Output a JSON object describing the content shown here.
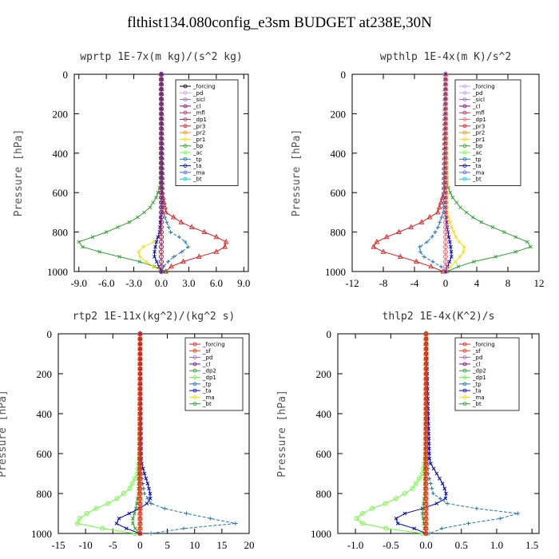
{
  "suptitle": "flthist134.080config_e3sm  BUDGET at238E,30N",
  "chart_data": [
    {
      "type": "line",
      "title": "wprtp  1E-7x(m kg)/(s^2 kg)",
      "ylabel": "Pressure [hPa]",
      "xlim": [
        -9.5,
        9.5
      ],
      "xticks": [
        -9.0,
        -6.0,
        -3.0,
        0.0,
        3.0,
        6.0,
        9.0
      ],
      "xtick_labels": [
        "-9.0",
        "-6.0",
        "-3.0",
        "0.0",
        "3.0",
        "6.0",
        "9.0"
      ],
      "ylim": [
        1000,
        0
      ],
      "yticks": [
        0,
        200,
        400,
        600,
        800,
        1000
      ],
      "legend": [
        "_forcing",
        "_pd",
        "_sicl",
        "_cl",
        "_mfl",
        "_dp1",
        "_pr3",
        "_pr2",
        "_pr1",
        "_bp",
        "_ac",
        "_tp",
        "_ta",
        "_ma",
        "_bt"
      ],
      "series": [
        {
          "name": "_forcing",
          "color": "#000000",
          "marker": "circle",
          "p": [
            0,
            1000
          ],
          "v": [
            0,
            0
          ]
        },
        {
          "name": "_pr3",
          "color": "#e41a1c",
          "marker": "tri",
          "p": [
            0,
            600,
            700,
            760,
            820,
            860,
            900,
            940,
            970,
            1000
          ],
          "v": [
            0,
            0.1,
            0.5,
            2.5,
            5.8,
            7.5,
            6.0,
            3.0,
            1.2,
            0.5
          ]
        },
        {
          "name": "_bp",
          "color": "#2ca02c",
          "marker": "x",
          "p": [
            0,
            560,
            620,
            680,
            740,
            800,
            850,
            880,
            920,
            960,
            1000
          ],
          "v": [
            0,
            -0.1,
            -0.5,
            -1.3,
            -3.0,
            -6.0,
            -9.0,
            -8.5,
            -5.0,
            -1.5,
            0.5
          ]
        },
        {
          "name": "_pr1",
          "color": "#ffd700",
          "marker": "x",
          "p": [
            0,
            700,
            800,
            850,
            880,
            910,
            940,
            970,
            1000
          ],
          "v": [
            0,
            0,
            0,
            -0.8,
            -2.2,
            -2.6,
            -2.0,
            -1.0,
            0
          ]
        },
        {
          "name": "_tp",
          "color": "#1f77b4",
          "marker": "plus",
          "p": [
            0,
            700,
            800,
            840,
            880,
            920,
            960,
            990
          ],
          "v": [
            0,
            0.2,
            1.0,
            2.5,
            3.0,
            1.5,
            0.5,
            0
          ]
        },
        {
          "name": "_ta",
          "color": "#0000cd",
          "marker": "x",
          "p": [
            0,
            700,
            800,
            860,
            920,
            960,
            1000
          ],
          "v": [
            0,
            0,
            -0.2,
            -0.6,
            -0.8,
            -0.4,
            0
          ]
        },
        {
          "name": "_dp1",
          "color": "#b03060",
          "marker": "circle",
          "p": [
            0,
            1000
          ],
          "v": [
            0,
            0
          ]
        }
      ]
    },
    {
      "type": "line",
      "title": "wpthlp  1E-4x(m K)/s^2",
      "ylabel": "Pressure [hPa]",
      "xlim": [
        -12,
        12
      ],
      "xticks": [
        -12,
        -8,
        -4,
        0,
        4,
        8,
        12
      ],
      "xtick_labels": [
        "-12",
        "-8",
        "-4",
        "0",
        "4",
        "8",
        "12"
      ],
      "ylim": [
        1000,
        0
      ],
      "yticks": [
        0,
        200,
        400,
        600,
        800,
        1000
      ],
      "legend": [
        "_forcing",
        "_pd",
        "_sicl",
        "_cl",
        "_mfl",
        "_dp1",
        "_pr3",
        "_pr2",
        "_pr1",
        "_bp",
        "_ac",
        "_tp",
        "_ta",
        "_ma",
        "_bt"
      ],
      "series": [
        {
          "name": "_forcing",
          "color": "#cc99ff",
          "marker": "circle",
          "p": [
            0,
            1000
          ],
          "v": [
            0,
            0
          ]
        },
        {
          "name": "_pr3",
          "color": "#e41a1c",
          "marker": "tri",
          "p": [
            0,
            600,
            700,
            760,
            800,
            840,
            870,
            900,
            940,
            980,
            1000
          ],
          "v": [
            0,
            -0.2,
            -1.0,
            -3.5,
            -6.0,
            -8.5,
            -9.5,
            -8.0,
            -4.5,
            -1.5,
            -0.3
          ]
        },
        {
          "name": "_bp",
          "color": "#2ca02c",
          "marker": "x",
          "p": [
            0,
            560,
            620,
            680,
            740,
            800,
            850,
            880,
            920,
            960,
            1000
          ],
          "v": [
            0,
            0.2,
            0.8,
            2.0,
            4.0,
            7.5,
            10.5,
            11.0,
            7.0,
            2.5,
            0.2
          ]
        },
        {
          "name": "_pr1",
          "color": "#ffd700",
          "marker": "x",
          "p": [
            0,
            700,
            780,
            840,
            880,
            910,
            940,
            980,
            1000
          ],
          "v": [
            0,
            0.2,
            0.8,
            1.5,
            2.5,
            2.2,
            1.5,
            0.5,
            0
          ]
        },
        {
          "name": "_tp",
          "color": "#1f77b4",
          "marker": "plus",
          "p": [
            0,
            700,
            780,
            840,
            880,
            920,
            960,
            990
          ],
          "v": [
            0,
            -0.3,
            -1.0,
            -2.0,
            -3.5,
            -3.0,
            -1.2,
            0
          ]
        },
        {
          "name": "_ta",
          "color": "#0000cd",
          "marker": "x",
          "p": [
            0,
            700,
            800,
            860,
            920,
            960,
            1000
          ],
          "v": [
            0,
            0,
            0.3,
            0.6,
            0.8,
            0.4,
            0
          ]
        },
        {
          "name": "_dp1",
          "color": "#ff6666",
          "marker": "circle",
          "p": [
            0,
            1000
          ],
          "v": [
            0,
            0
          ]
        }
      ]
    },
    {
      "type": "line",
      "title": "rtp2  1E-11x(kg^2)/(kg^2 s)",
      "ylabel": "Pressure [hPa]",
      "xlim": [
        -15,
        20
      ],
      "xticks": [
        -15,
        -10,
        -5,
        0,
        5,
        10,
        15,
        20
      ],
      "xtick_labels": [
        "-15",
        "-10",
        "-5",
        "0",
        "5",
        "10",
        "15",
        "20"
      ],
      "ylim": [
        1000,
        0
      ],
      "yticks": [
        0,
        200,
        400,
        600,
        800,
        1000
      ],
      "legend": [
        "_forcing",
        "_sf",
        "_pd",
        "_cl",
        "_dp2",
        "_dp1",
        "_tp",
        "_ta",
        "_ma",
        "_bt"
      ],
      "series": [
        {
          "name": "_dp1",
          "color": "#66ff33",
          "marker": "circle",
          "p": [
            0,
            600,
            700,
            780,
            840,
            880,
            920,
            950,
            980,
            1000
          ],
          "v": [
            0,
            0,
            -0.5,
            -2.0,
            -5.0,
            -8.5,
            -11.0,
            -11.5,
            -6.0,
            -1.0
          ]
        },
        {
          "name": "_dp2",
          "color": "#2ca02c",
          "marker": "x",
          "p": [
            0,
            800,
            880,
            940,
            980,
            1000
          ],
          "v": [
            0,
            -0.3,
            -0.8,
            -1.5,
            -0.8,
            0
          ]
        },
        {
          "name": "_tp",
          "color": "#1f77b4",
          "marker": "plus",
          "p": [
            0,
            700,
            800,
            850,
            880,
            920,
            950,
            970,
            990
          ],
          "v": [
            0,
            0.2,
            0.8,
            2.0,
            5.0,
            12.0,
            17.5,
            10.0,
            2.0
          ]
        },
        {
          "name": "_ta",
          "color": "#0000cd",
          "marker": "x",
          "p": [
            0,
            640,
            700,
            760,
            820,
            860,
            900,
            940,
            970,
            1000
          ],
          "v": [
            0,
            0.2,
            0.8,
            1.5,
            2.0,
            1.0,
            -2.0,
            -5.0,
            -3.0,
            0
          ]
        },
        {
          "name": "_forcing",
          "color": "#e41a1c",
          "marker": "circle",
          "p": [
            0,
            1000
          ],
          "v": [
            0,
            0
          ]
        },
        {
          "name": "_sf",
          "color": "#ff3300",
          "marker": "tri",
          "p": [
            0,
            1000
          ],
          "v": [
            0,
            0
          ]
        }
      ]
    },
    {
      "type": "line",
      "title": "thlp2  1E-4x(K^2)/s",
      "ylabel": "Pressure [hPa]",
      "xlim": [
        -1.25,
        1.6
      ],
      "xticks": [
        -1.0,
        -0.5,
        0.0,
        0.5,
        1.0,
        1.5
      ],
      "xtick_labels": [
        "-1.0",
        "-0.5",
        "0.0",
        "0.5",
        "1.0",
        "1.5"
      ],
      "ylim": [
        1000,
        0
      ],
      "yticks": [
        0,
        200,
        400,
        600,
        800,
        1000
      ],
      "legend": [
        "_forcing",
        "_sf",
        "_pd",
        "_cl",
        "_dp2",
        "_dp1",
        "_tp",
        "_ta",
        "_ma",
        "_bt"
      ],
      "series": [
        {
          "name": "_dp1",
          "color": "#66ff33",
          "marker": "circle",
          "p": [
            0,
            600,
            700,
            780,
            840,
            880,
            920,
            950,
            980,
            1000
          ],
          "v": [
            0,
            0,
            -0.05,
            -0.2,
            -0.5,
            -0.8,
            -1.0,
            -0.9,
            -0.5,
            -0.05
          ]
        },
        {
          "name": "_tp",
          "color": "#1f77b4",
          "marker": "plus",
          "p": [
            0,
            700,
            800,
            850,
            880,
            900,
            930,
            960,
            990
          ],
          "v": [
            0,
            0.03,
            0.1,
            0.3,
            0.8,
            1.3,
            1.0,
            0.4,
            0.05
          ]
        },
        {
          "name": "_ta",
          "color": "#0000cd",
          "marker": "x",
          "p": [
            0,
            640,
            700,
            760,
            820,
            860,
            900,
            940,
            970,
            1000
          ],
          "v": [
            0,
            0.05,
            0.15,
            0.25,
            0.3,
            0.1,
            -0.3,
            -0.5,
            -0.2,
            0
          ]
        },
        {
          "name": "_dp2",
          "color": "#2ca02c",
          "marker": "x",
          "p": [
            0,
            800,
            900,
            980,
            1000
          ],
          "v": [
            0,
            -0.02,
            -0.05,
            -0.02,
            0
          ]
        },
        {
          "name": "_forcing",
          "color": "#e41a1c",
          "marker": "circle",
          "p": [
            0,
            1000
          ],
          "v": [
            0,
            0
          ]
        },
        {
          "name": "_sf",
          "color": "#ff3300",
          "marker": "tri",
          "p": [
            0,
            1000
          ],
          "v": [
            0,
            0
          ]
        }
      ]
    }
  ]
}
